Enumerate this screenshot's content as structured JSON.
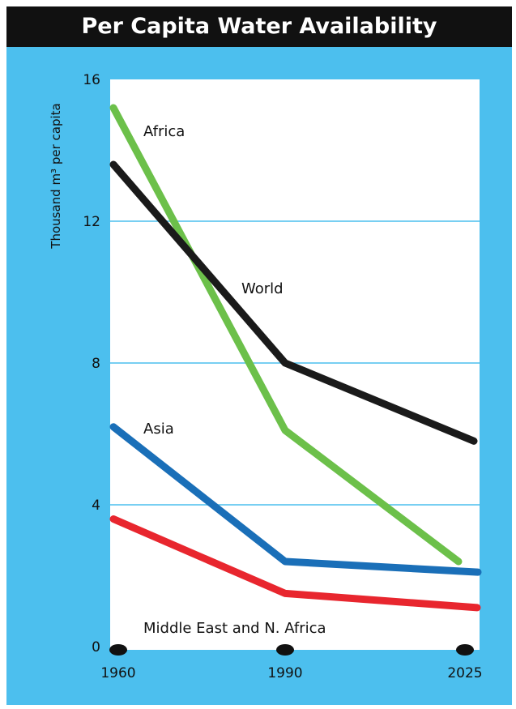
{
  "chart_data": {
    "type": "line",
    "title": "Per Capita Water Availability",
    "ylabel": "Thousand m³ per capita",
    "xlabel": "",
    "x": [
      "1960",
      "1990",
      "2025"
    ],
    "ylim": [
      0,
      16
    ],
    "yticks": [
      "0",
      "4",
      "8",
      "12",
      "16"
    ],
    "grid": true,
    "series": [
      {
        "name": "Africa",
        "values": [
          15.2,
          6.1,
          2.4
        ],
        "color": "#6cc04a"
      },
      {
        "name": "World",
        "values": [
          13.6,
          8.0,
          5.8
        ],
        "color": "#1a1a1a"
      },
      {
        "name": "Asia",
        "values": [
          6.2,
          2.4,
          2.1
        ],
        "color": "#1a6fb8"
      },
      {
        "name": "Middle East and N. Africa",
        "values": [
          3.6,
          1.5,
          1.1
        ],
        "color": "#e8262e"
      }
    ]
  }
}
